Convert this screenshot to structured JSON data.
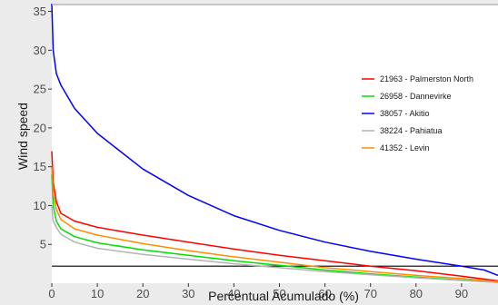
{
  "chart_data": {
    "type": "line",
    "title": "",
    "xlabel": "Percentual Acumulado (%)",
    "ylabel": "Wind speed",
    "xlim": [
      0,
      98
    ],
    "ylim": [
      0,
      36
    ],
    "x_ticks": [
      "0",
      "10",
      "20",
      "30",
      "40",
      "50",
      "60",
      "70",
      "80",
      "90"
    ],
    "y_ticks": [
      "5",
      "10",
      "15",
      "20",
      "25",
      "30",
      "35"
    ],
    "x_tick_values": [
      0,
      10,
      20,
      30,
      40,
      50,
      60,
      70,
      80,
      90
    ],
    "y_tick_values": [
      5,
      10,
      15,
      20,
      25,
      30,
      35
    ],
    "grid": false,
    "legend_position": "right",
    "reference_line": {
      "y": 2.2,
      "color": "#000000"
    },
    "series": [
      {
        "name": "21963 - Palmerston North",
        "color": "#ff0000",
        "x": [
          0,
          0.3,
          1,
          2,
          5,
          10,
          20,
          30,
          40,
          50,
          60,
          70,
          80,
          90,
          98
        ],
        "y": [
          17,
          13,
          10.5,
          9,
          8,
          7.2,
          6.2,
          5.3,
          4.4,
          3.6,
          2.9,
          2.2,
          1.6,
          0.9,
          0.3
        ]
      },
      {
        "name": "26958 - Dannevirke",
        "color": "#00e000",
        "x": [
          0,
          0.3,
          1,
          2,
          5,
          10,
          20,
          30,
          40,
          50,
          60,
          70,
          80,
          90,
          98
        ],
        "y": [
          14,
          10,
          8,
          7,
          6,
          5.2,
          4.3,
          3.6,
          2.9,
          2.3,
          1.7,
          1.2,
          0.8,
          0.4,
          0.1
        ]
      },
      {
        "name": "38057 - Akitio",
        "color": "#0000ff",
        "x": [
          0,
          0.3,
          1,
          2,
          5,
          10,
          20,
          30,
          40,
          50,
          60,
          70,
          80,
          90,
          95,
          98
        ],
        "y": [
          36,
          30,
          27,
          25.5,
          22.5,
          19.3,
          14.7,
          11.3,
          8.7,
          6.8,
          5.3,
          4.1,
          3.1,
          2.2,
          1.7,
          1
        ]
      },
      {
        "name": "38224 - Pahiatua",
        "color": "#b3b3b3",
        "x": [
          0,
          0.3,
          1,
          2,
          5,
          10,
          20,
          30,
          40,
          50,
          60,
          70,
          80,
          90,
          98
        ],
        "y": [
          10,
          8,
          7.2,
          6.3,
          5.3,
          4.5,
          3.7,
          3.1,
          2.5,
          2.0,
          1.5,
          1.1,
          0.7,
          0.35,
          0.1
        ]
      },
      {
        "name": "41352 - Levin",
        "color": "#ff8c00",
        "x": [
          0,
          0.3,
          1,
          2,
          5,
          10,
          20,
          30,
          40,
          50,
          60,
          70,
          80,
          90,
          98
        ],
        "y": [
          15,
          11.5,
          9.5,
          8.2,
          7,
          6.2,
          5.1,
          4.2,
          3.4,
          2.7,
          2.0,
          1.5,
          1.0,
          0.6,
          0.2
        ]
      }
    ]
  }
}
